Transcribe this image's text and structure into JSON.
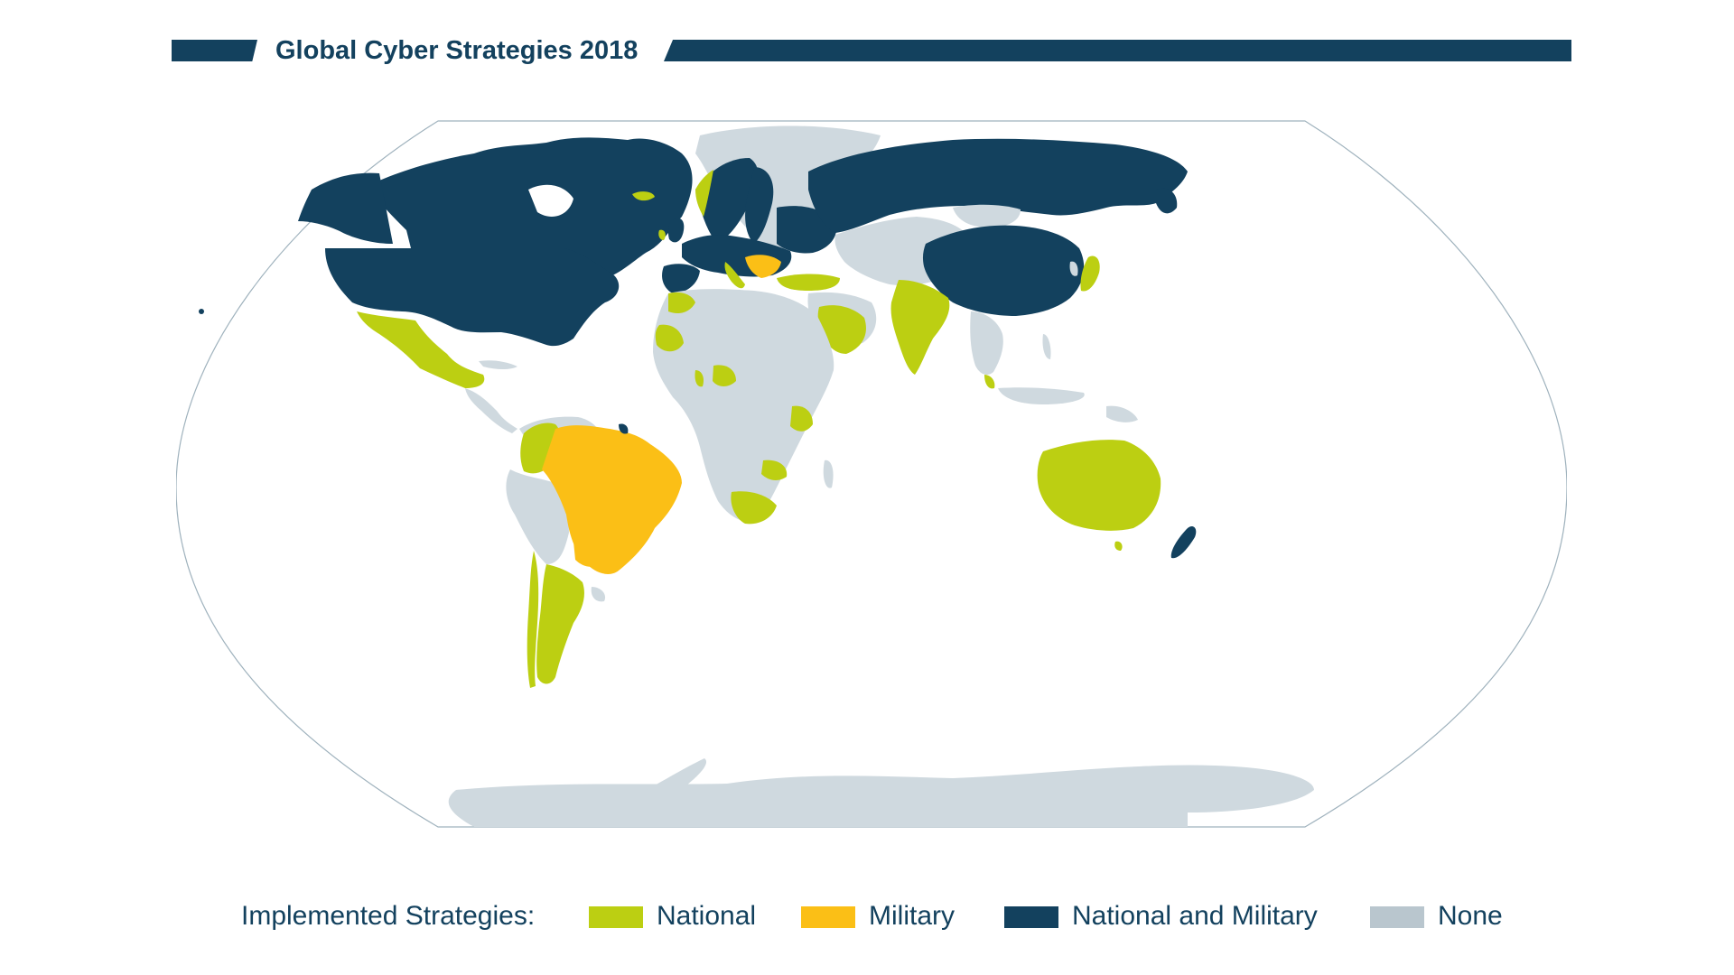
{
  "title": "Global Cyber Strategies 2018",
  "legend": {
    "heading": "Implemented Strategies:",
    "items": [
      {
        "key": "national",
        "label": "National",
        "color": "#bccf12"
      },
      {
        "key": "military",
        "label": "Military",
        "color": "#fbbf16"
      },
      {
        "key": "both",
        "label": "National and Military",
        "color": "#13415e"
      },
      {
        "key": "none",
        "label": "None",
        "color": "#b9c6ce"
      }
    ]
  },
  "colors": {
    "title_bar": "#13415e",
    "national": "#bccf12",
    "military": "#fbbf16",
    "both": "#13415e",
    "none": "#cfd9df",
    "map_outline": "#9fb2bd",
    "ocean": "#ffffff"
  },
  "regions": {
    "national_and_military": [
      "United States",
      "Canada",
      "Russia",
      "China",
      "United Kingdom",
      "France",
      "Germany",
      "Netherlands",
      "Nordic countries",
      "Baltic states",
      "Poland",
      "Spain",
      "New Zealand",
      "French Guiana"
    ],
    "national": [
      "Mexico",
      "Colombia",
      "Argentina",
      "Chile",
      "Uruguay",
      "Australia",
      "India",
      "Saudi Arabia",
      "Japan",
      "South Africa",
      "Nigeria",
      "Kenya",
      "Morocco",
      "Mauritania",
      "Turkey",
      "Malaysia",
      "Uganda",
      "Zambia",
      "Ghana",
      "Italy",
      "Ireland",
      "Iceland"
    ],
    "military": [
      "Brazil",
      "Paraguay",
      "Serbia",
      "Bulgaria"
    ]
  }
}
